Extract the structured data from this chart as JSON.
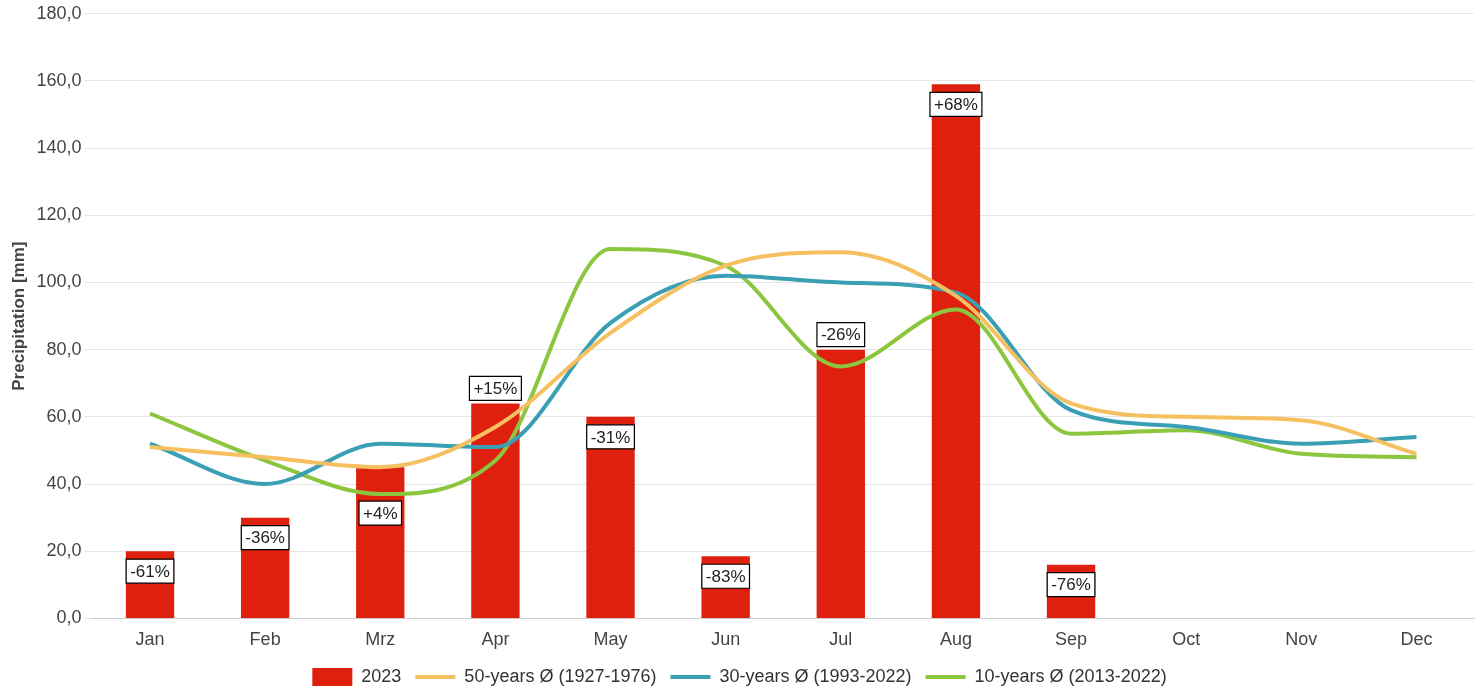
{
  "chart_data": {
    "type": "bar",
    "ylabel": "Precipitation [mm]",
    "categories": [
      "Jan",
      "Feb",
      "Mrz",
      "Apr",
      "May",
      "Jun",
      "Jul",
      "Aug",
      "Sep",
      "Oct",
      "Nov",
      "Dec"
    ],
    "ylim": [
      0,
      180
    ],
    "yticks": [
      {
        "value": 0,
        "label": "0,0"
      },
      {
        "value": 20,
        "label": "20,0"
      },
      {
        "value": 40,
        "label": "40,0"
      },
      {
        "value": 60,
        "label": "60,0"
      },
      {
        "value": 80,
        "label": "80,0"
      },
      {
        "value": 100,
        "label": "100,0"
      },
      {
        "value": 120,
        "label": "120,0"
      },
      {
        "value": 140,
        "label": "140,0"
      },
      {
        "value": 160,
        "label": "160,0"
      },
      {
        "value": 180,
        "label": "180,0"
      }
    ],
    "annotations": [
      {
        "text": "-61%",
        "x": "Jan",
        "y": 20
      },
      {
        "text": "-36%",
        "x": "Feb",
        "y": 30
      },
      {
        "text": "+4%",
        "x": "Mrz",
        "y": 45
      },
      {
        "text": "+15%",
        "x": "Apr",
        "y": 64
      },
      {
        "text": "-31%",
        "x": "May",
        "y": 60
      },
      {
        "text": "-83%",
        "x": "Jun",
        "y": 18.5
      },
      {
        "text": "-26%",
        "x": "Jul",
        "y": 80
      },
      {
        "text": "+68%",
        "x": "Aug",
        "y": 159
      },
      {
        "text": "-76%",
        "x": "Sep",
        "y": 16
      }
    ],
    "grid": "y",
    "legend": "bottom",
    "marker": "none",
    "line_style": "solid",
    "series": [
      {
        "name": "2023",
        "color": "#e0200e",
        "values": [
          20,
          30,
          45,
          64,
          60,
          18.5,
          80,
          159,
          16,
          null,
          null,
          null
        ]
      },
      {
        "name": "50-years Ø (1927-1976)",
        "type": "line",
        "color": "#f5c060",
        "values": [
          51,
          48,
          45,
          57,
          85,
          105,
          109,
          96,
          64,
          60,
          59,
          49
        ]
      },
      {
        "name": "30-years Ø (1993-2022)",
        "type": "line",
        "color": "#3a9fb5",
        "values": [
          52,
          40,
          52,
          51,
          88,
          102,
          100,
          97,
          62,
          57,
          52,
          54
        ]
      },
      {
        "name": "10-years Ø (2013-2022)",
        "type": "line",
        "color": "#8cc63f",
        "values": [
          61,
          47,
          37,
          47,
          110,
          105,
          75,
          92,
          55,
          56,
          49,
          48
        ]
      }
    ]
  }
}
